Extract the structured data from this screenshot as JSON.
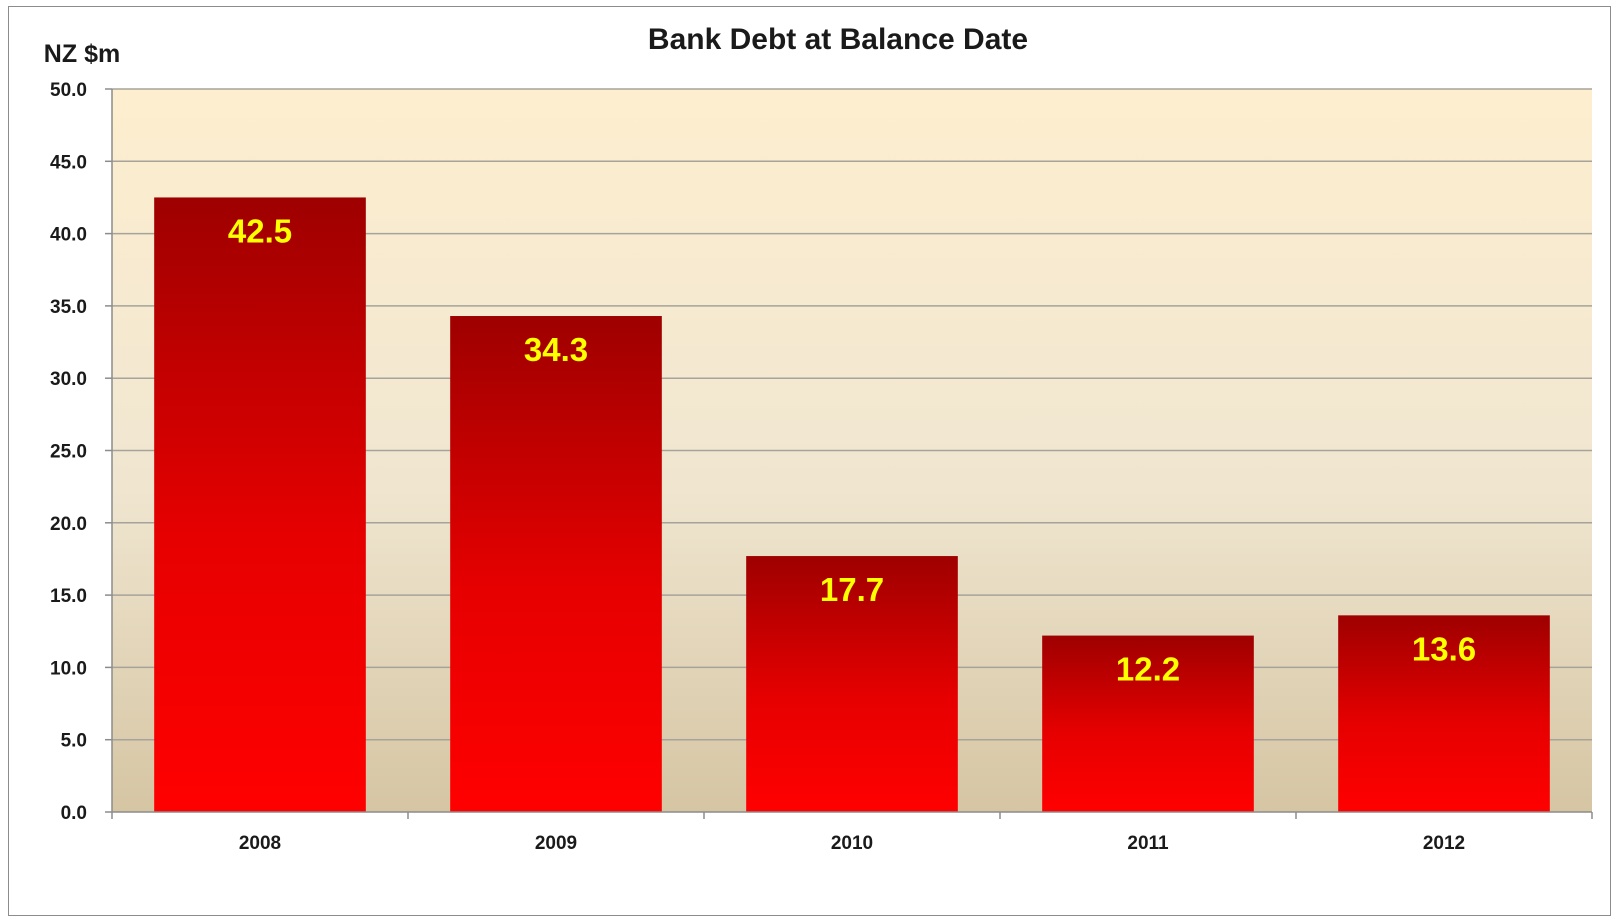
{
  "chart_data": {
    "type": "bar",
    "title": "Bank Debt at Balance Date",
    "ylabel": "NZ $m",
    "xlabel": "",
    "categories": [
      "2008",
      "2009",
      "2010",
      "2011",
      "2012"
    ],
    "values": [
      42.5,
      34.3,
      17.7,
      12.2,
      13.6
    ],
    "data_labels": [
      "42.5",
      "34.3",
      "17.7",
      "12.2",
      "13.6"
    ],
    "ylim": [
      0,
      50
    ],
    "y_ticks": [
      "0.0",
      "5.0",
      "10.0",
      "15.0",
      "20.0",
      "25.0",
      "30.0",
      "35.0",
      "40.0",
      "45.0",
      "50.0"
    ],
    "grid": true,
    "legend": "none",
    "colors": {
      "bar_top": "#9e0000",
      "bar_bottom": "#ff0000",
      "data_label": "#ffff00",
      "plot_bg_top": "#fdeecf",
      "plot_bg_bottom": "#d5c5a3",
      "gridline": "#a6a39a"
    }
  }
}
